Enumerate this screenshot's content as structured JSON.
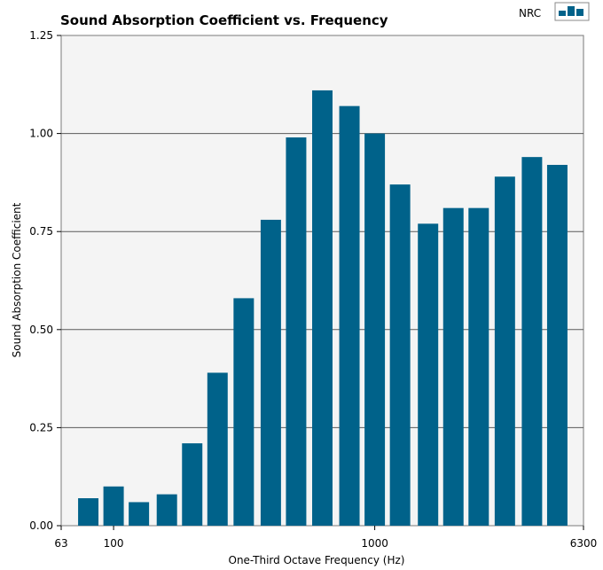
{
  "chart_data": {
    "type": "bar",
    "title": "Sound Absorption Coefficient  vs.  Frequency",
    "xlabel": "One-Third Octave Frequency (Hz)",
    "ylabel": "Sound Absorption Coefficient",
    "ylim": [
      0,
      1.25
    ],
    "yticks": [
      0,
      0.25,
      0.5,
      0.75,
      1.0,
      1.25
    ],
    "ytick_labels": [
      "0.00",
      "0.25",
      "0.50",
      "0.75",
      "1.00",
      "1.25"
    ],
    "xlim_log": [
      63,
      6300
    ],
    "xticks": [
      63,
      100,
      1000,
      6300
    ],
    "xtick_labels": [
      "63",
      "100",
      "1000",
      "6300"
    ],
    "x_scale": "log",
    "grid": "horizontal",
    "legend": {
      "label": "NRC",
      "position": "top-right"
    },
    "bar_color": "#00628a",
    "plot_background": "#f4f4f4",
    "categories": [
      80,
      100,
      125,
      160,
      200,
      250,
      315,
      400,
      500,
      630,
      800,
      1000,
      1250,
      1600,
      2000,
      2500,
      3150,
      4000,
      5000
    ],
    "values": [
      0.07,
      0.1,
      0.06,
      0.08,
      0.21,
      0.39,
      0.58,
      0.78,
      0.99,
      1.11,
      1.07,
      1.0,
      0.87,
      0.77,
      0.81,
      0.81,
      0.89,
      0.94,
      0.92
    ]
  }
}
